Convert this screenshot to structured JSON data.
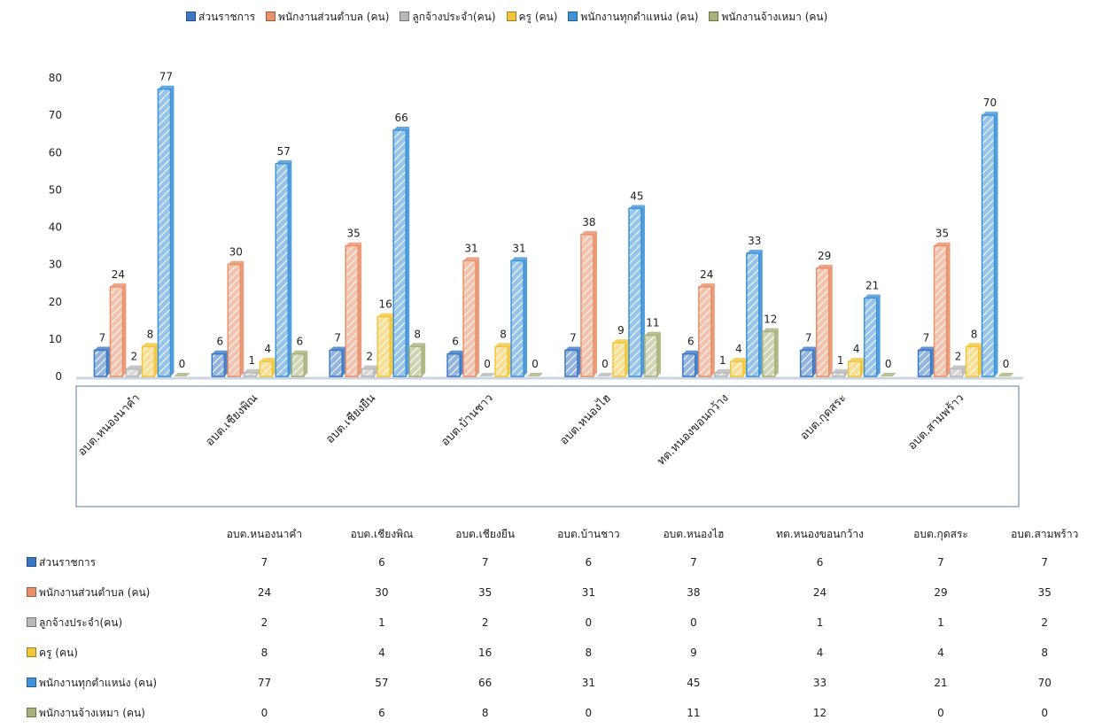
{
  "chart_data": {
    "type": "bar",
    "categories": [
      "อบต.หนองนาคำ",
      "อบต.เชียงพิณ",
      "อบต.เชียงยืน",
      "อบต.บ้านชาว",
      "อบต.หนองไฮ",
      "ทต.หนองขอนกว้าง",
      "อบต.กุดสระ",
      "อบต.สามพร้าว"
    ],
    "series": [
      {
        "name": "ส่วนราชการ",
        "values": [
          7,
          6,
          7,
          6,
          7,
          6,
          7,
          7
        ],
        "color": "#3b78c4"
      },
      {
        "name": "พนักงานส่วนตำบล (คน)",
        "values": [
          24,
          30,
          35,
          31,
          38,
          24,
          29,
          35
        ],
        "color": "#e8916a"
      },
      {
        "name": "ลูกจ้างประจำ(คน)",
        "values": [
          2,
          1,
          2,
          0,
          0,
          1,
          1,
          2
        ],
        "color": "#b8b8b8"
      },
      {
        "name": "ครู (คน)",
        "values": [
          8,
          4,
          16,
          8,
          9,
          4,
          4,
          8
        ],
        "color": "#f2c53a"
      },
      {
        "name": "พนักงานทุกตำแหน่ง (คน)",
        "values": [
          77,
          57,
          66,
          31,
          45,
          33,
          21,
          70
        ],
        "color": "#3f93d8"
      },
      {
        "name": "พนักงานจ้างเหมา (คน)",
        "values": [
          0,
          6,
          8,
          0,
          11,
          12,
          0,
          0
        ],
        "color": "#a9b27a"
      }
    ],
    "y_ticks": [
      0,
      10,
      20,
      30,
      40,
      50,
      60,
      70,
      80
    ],
    "ylim": [
      0,
      80
    ],
    "legend_position": "top",
    "grid": false
  }
}
